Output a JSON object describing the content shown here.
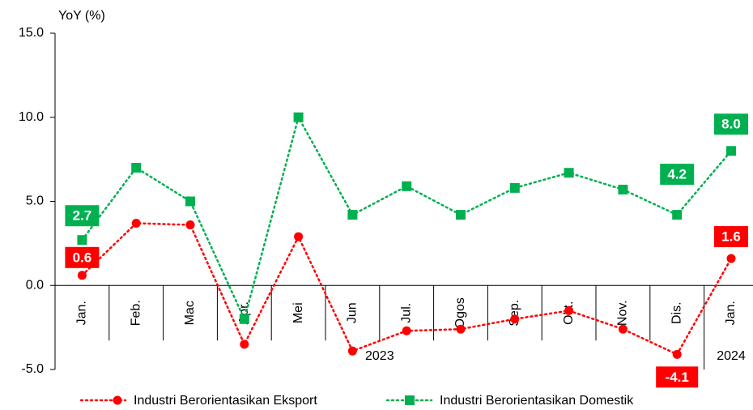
{
  "chart_data": {
    "type": "line",
    "y_axis_label": "YoY (%)",
    "categories": [
      "Jan.",
      "Feb.",
      "Mac",
      "Apr.",
      "Mei",
      "Jun",
      "Jul.",
      "Ogos",
      "Sep.",
      "Okt.",
      "Nov.",
      "Dis.",
      "Jan."
    ],
    "year_labels": [
      "2023",
      "2024"
    ],
    "ylim": [
      -5,
      15
    ],
    "yticks": [
      {
        "value": -5,
        "label": "-5.0"
      },
      {
        "value": 0,
        "label": "0.0"
      },
      {
        "value": 5,
        "label": "5.0"
      },
      {
        "value": 10,
        "label": "10.0"
      },
      {
        "value": 15,
        "label": "15.0"
      }
    ],
    "series": [
      {
        "name": "Industri Berorientasikan Eksport",
        "color": "#ff0000",
        "marker": "circle",
        "values": [
          0.6,
          3.7,
          3.6,
          -3.5,
          2.9,
          -3.9,
          -2.7,
          -2.6,
          -2.0,
          -1.5,
          -2.6,
          -4.1,
          1.6
        ],
        "value_labels": [
          "0.6",
          null,
          null,
          null,
          null,
          null,
          null,
          null,
          null,
          null,
          null,
          "-4.1",
          "1.6"
        ]
      },
      {
        "name": "Industri Berorientasikan Domestik",
        "color": "#00b050",
        "marker": "square",
        "values": [
          2.7,
          7.0,
          5.0,
          -2.0,
          10.0,
          4.2,
          5.9,
          4.2,
          5.8,
          6.7,
          5.7,
          4.2,
          8.0
        ],
        "value_labels": [
          "2.7",
          null,
          null,
          null,
          null,
          null,
          null,
          null,
          null,
          null,
          null,
          "4.2",
          "8.0"
        ]
      }
    ]
  }
}
